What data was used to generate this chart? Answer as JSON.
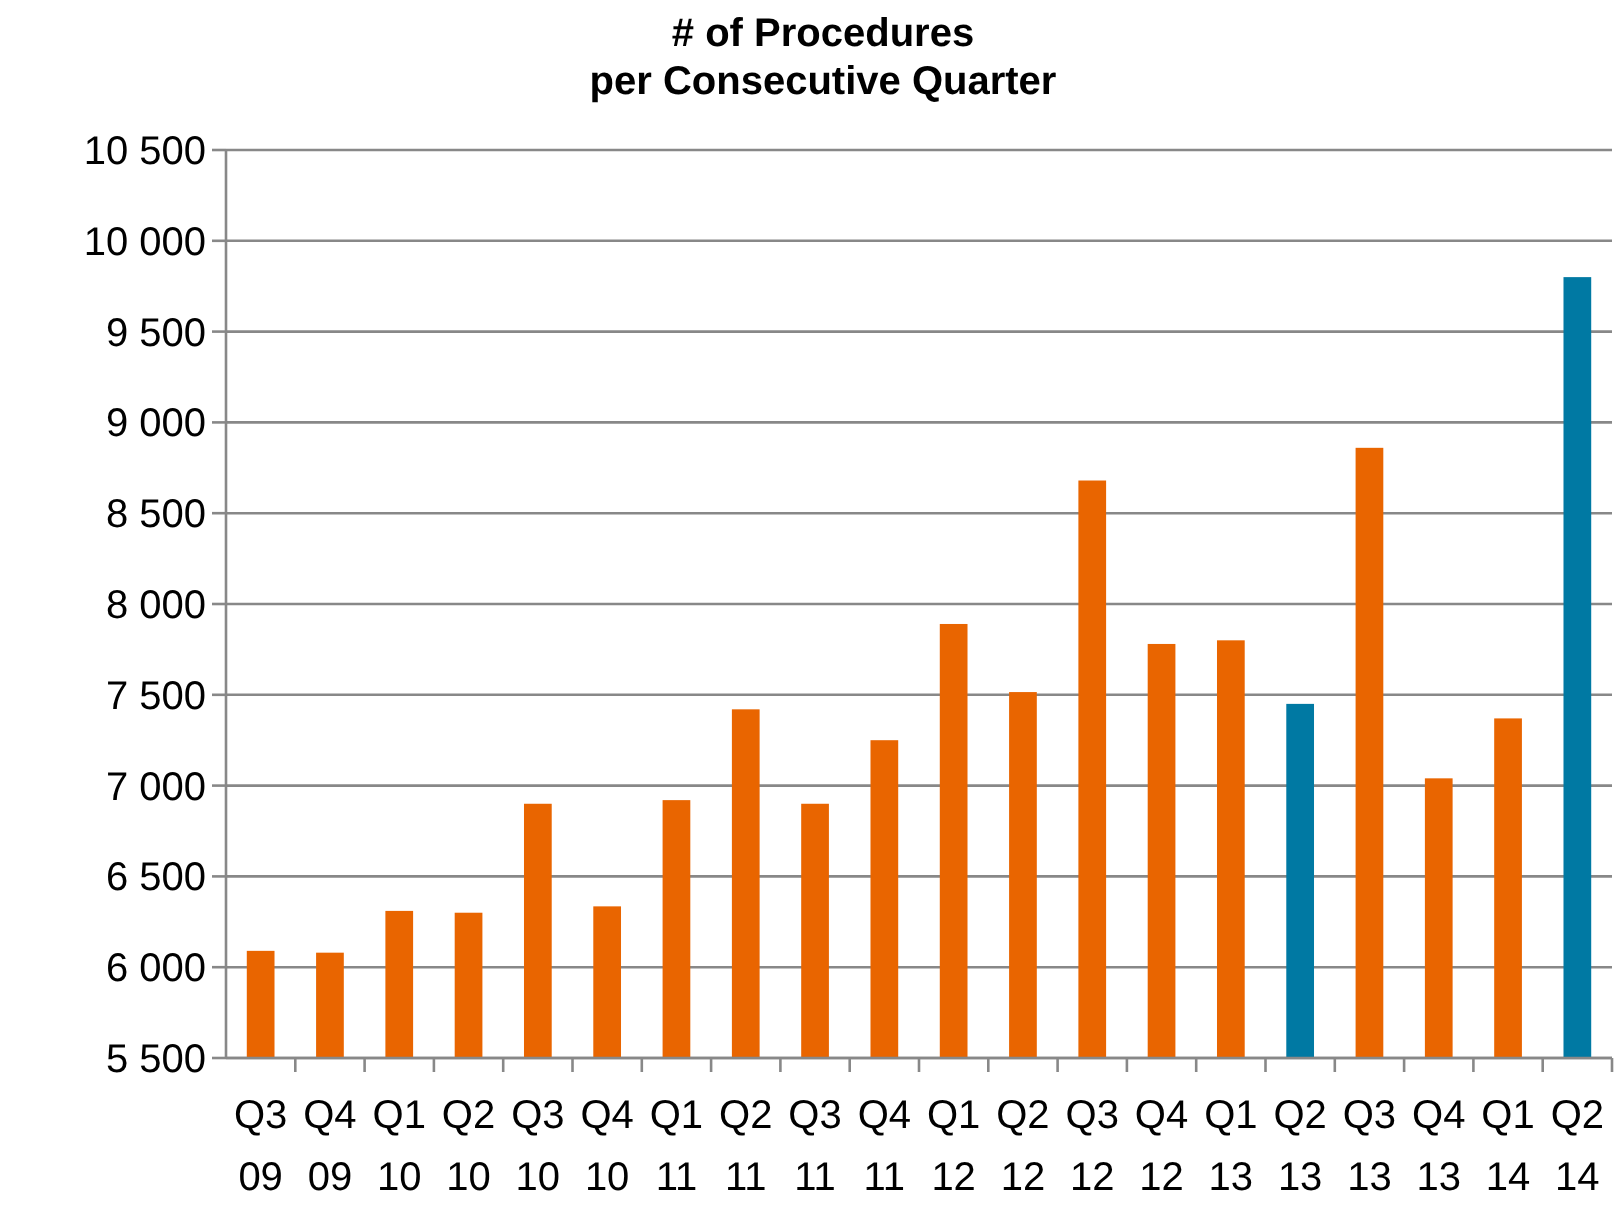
{
  "chart_data": {
    "type": "bar",
    "title": "# of Procedures\nper Consecutive Quarter",
    "categories": [
      "Q3 09",
      "Q4 09",
      "Q1 10",
      "Q2 10",
      "Q3 10",
      "Q4 10",
      "Q1 11",
      "Q2 11",
      "Q3 11",
      "Q4 11",
      "Q1 12",
      "Q2 12",
      "Q3 12",
      "Q4 12",
      "Q1 13",
      "Q2 13",
      "Q3 13",
      "Q4 13",
      "Q1 14",
      "Q2 14"
    ],
    "values": [
      6090,
      6080,
      6310,
      6300,
      6900,
      6335,
      6920,
      7420,
      6900,
      7250,
      7890,
      7515,
      8680,
      7780,
      7800,
      7450,
      8860,
      7040,
      7370,
      9800
    ],
    "colors": [
      "#e96500",
      "#e96500",
      "#e96500",
      "#e96500",
      "#e96500",
      "#e96500",
      "#e96500",
      "#e96500",
      "#e96500",
      "#e96500",
      "#e96500",
      "#e96500",
      "#e96500",
      "#e96500",
      "#e96500",
      "#0079a3",
      "#e96500",
      "#e96500",
      "#e96500",
      "#0079a3"
    ],
    "ylim": [
      5500,
      10500
    ],
    "yticks": [
      {
        "value": 5500,
        "label": "5 500"
      },
      {
        "value": 6000,
        "label": "6 000"
      },
      {
        "value": 6500,
        "label": "6 500"
      },
      {
        "value": 7000,
        "label": "7 000"
      },
      {
        "value": 7500,
        "label": "7 500"
      },
      {
        "value": 8000,
        "label": "8 000"
      },
      {
        "value": 8500,
        "label": "8 500"
      },
      {
        "value": 9000,
        "label": "9 000"
      },
      {
        "value": 9500,
        "label": "9 500"
      },
      {
        "value": 10000,
        "label": "10 000"
      },
      {
        "value": 10500,
        "label": "10 500"
      }
    ],
    "grid": "y"
  }
}
